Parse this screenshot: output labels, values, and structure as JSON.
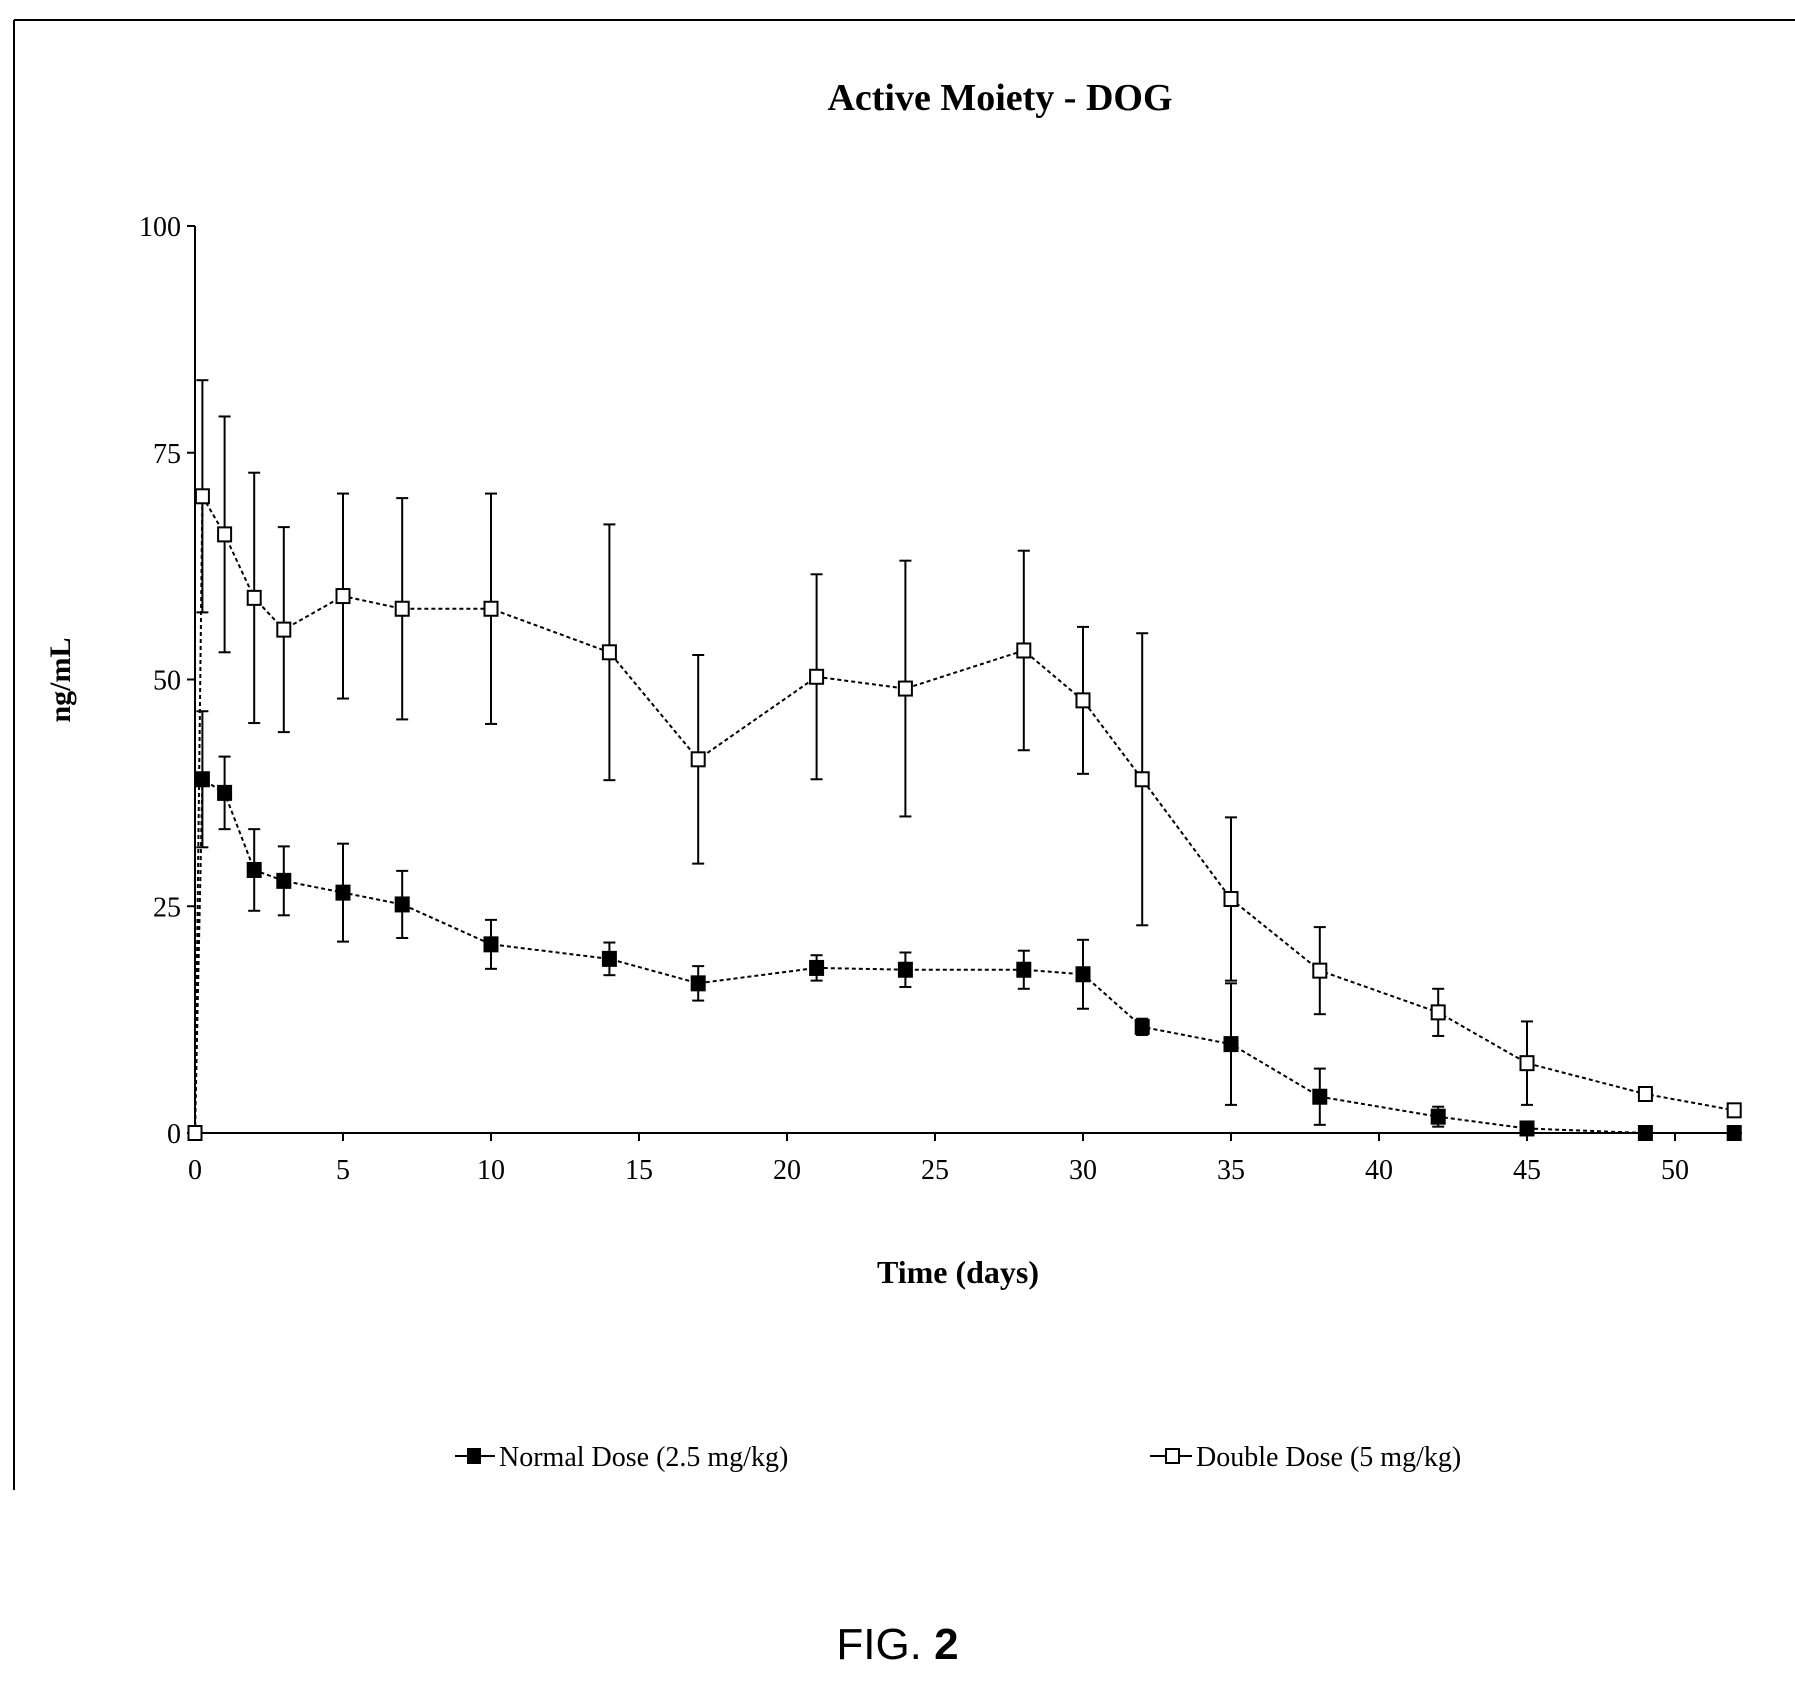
{
  "figure": {
    "caption_prefix": "FIG.",
    "caption_number": "2"
  },
  "chart_data": {
    "type": "line",
    "title": "Active Moiety - DOG",
    "xlabel": "Time (days)",
    "ylabel": "ng/mL",
    "xlim": [
      0,
      53
    ],
    "ylim": [
      0,
      100
    ],
    "xticks": [
      0,
      5,
      10,
      15,
      20,
      25,
      30,
      35,
      40,
      45,
      50
    ],
    "yticks": [
      0,
      25,
      50,
      75,
      100
    ],
    "grid": false,
    "legend_position": "bottom",
    "series": [
      {
        "name": "Normal Dose (2.5 mg/kg)",
        "marker": "filled-square",
        "line_style": "dashed",
        "color": "#000000",
        "points": [
          {
            "x": 0,
            "y": 0,
            "err": 0
          },
          {
            "x": 0.25,
            "y": 39,
            "err": 7.5
          },
          {
            "x": 1,
            "y": 37.5,
            "err": 4
          },
          {
            "x": 2,
            "y": 29,
            "err": 4.5
          },
          {
            "x": 3,
            "y": 27.8,
            "err": 3.8
          },
          {
            "x": 5,
            "y": 26.5,
            "err": 5.4
          },
          {
            "x": 7,
            "y": 25.2,
            "err": 3.7
          },
          {
            "x": 10,
            "y": 20.8,
            "err": 2.7
          },
          {
            "x": 14,
            "y": 19.2,
            "err": 1.8
          },
          {
            "x": 17,
            "y": 16.5,
            "err": 1.9
          },
          {
            "x": 21,
            "y": 18.2,
            "err": 1.4
          },
          {
            "x": 24,
            "y": 18,
            "err": 1.9
          },
          {
            "x": 28,
            "y": 18,
            "err": 2.1
          },
          {
            "x": 30,
            "y": 17.5,
            "err": 3.8
          },
          {
            "x": 32,
            "y": 11.7,
            "err": 0.9
          },
          {
            "x": 35,
            "y": 9.8,
            "err": 6.7
          },
          {
            "x": 38,
            "y": 4,
            "err": 3.1
          },
          {
            "x": 42,
            "y": 1.8,
            "err": 1.1
          },
          {
            "x": 45,
            "y": 0.5,
            "err": 0.3
          },
          {
            "x": 49,
            "y": 0,
            "err": 0
          },
          {
            "x": 52,
            "y": 0,
            "err": 0
          }
        ]
      },
      {
        "name": "Double Dose (5 mg/kg)",
        "marker": "open-square",
        "line_style": "dashed",
        "color": "#000000",
        "points": [
          {
            "x": 0,
            "y": 0,
            "err": 0
          },
          {
            "x": 0.25,
            "y": 70.2,
            "err": 12.8
          },
          {
            "x": 1,
            "y": 66,
            "err": 13
          },
          {
            "x": 2,
            "y": 59,
            "err": 13.8
          },
          {
            "x": 3,
            "y": 55.5,
            "err": 11.3
          },
          {
            "x": 5,
            "y": 59.2,
            "err": 11.3
          },
          {
            "x": 7,
            "y": 57.8,
            "err": 12.2
          },
          {
            "x": 10,
            "y": 57.8,
            "err": 12.7
          },
          {
            "x": 14,
            "y": 53,
            "err": 14.1
          },
          {
            "x": 17,
            "y": 41.2,
            "err": 11.5
          },
          {
            "x": 21,
            "y": 50.3,
            "err": 11.3
          },
          {
            "x": 24,
            "y": 49,
            "err": 14.1
          },
          {
            "x": 28,
            "y": 53.2,
            "err": 11
          },
          {
            "x": 30,
            "y": 47.7,
            "err": 8.1
          },
          {
            "x": 32,
            "y": 39,
            "err": 16.1
          },
          {
            "x": 35,
            "y": 25.8,
            "err": 9
          },
          {
            "x": 38,
            "y": 17.9,
            "err": 4.8
          },
          {
            "x": 42,
            "y": 13.3,
            "err": 2.6
          },
          {
            "x": 45,
            "y": 7.7,
            "err": 4.6
          },
          {
            "x": 49,
            "y": 4.3,
            "err": 0
          },
          {
            "x": 52,
            "y": 2.5,
            "err": 0
          }
        ]
      }
    ]
  }
}
